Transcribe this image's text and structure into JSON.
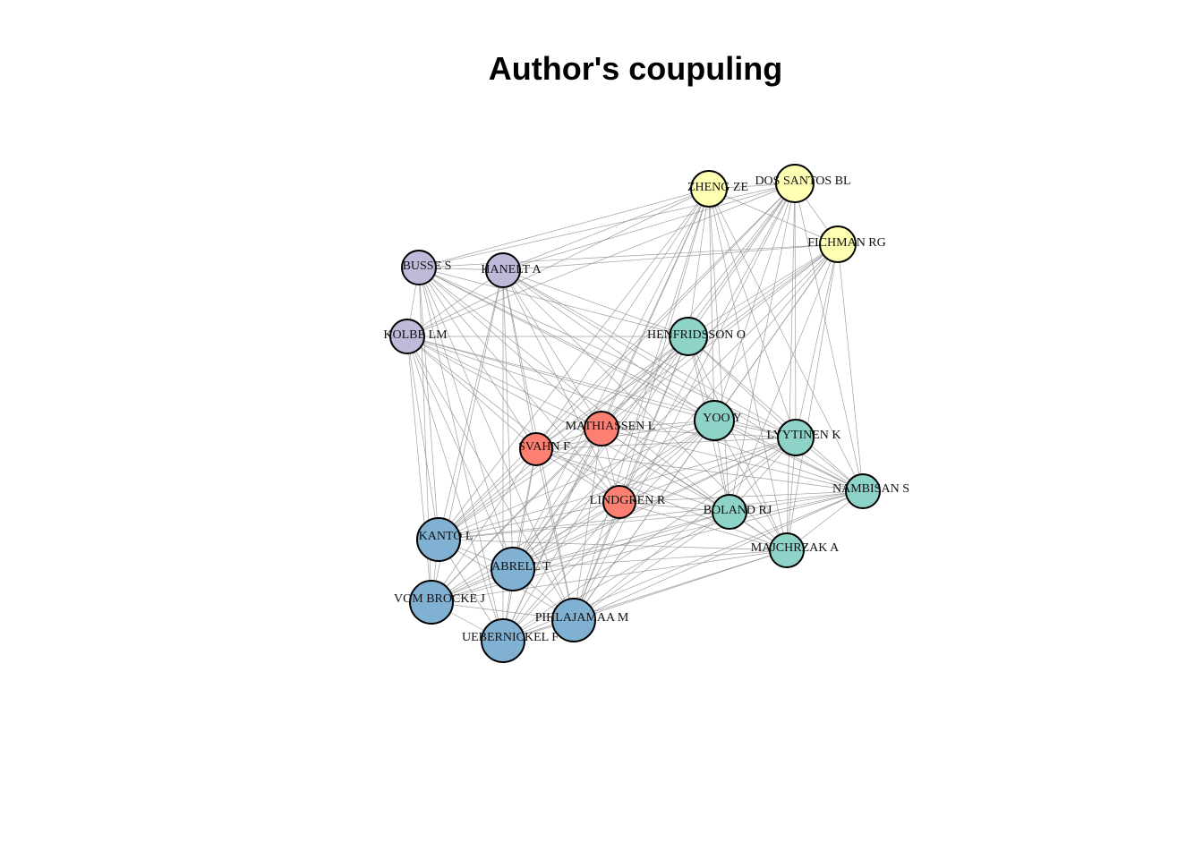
{
  "title": "Author's coupuling",
  "clusters": {
    "yellow": "#ffffb3",
    "purple": "#bebada",
    "teal": "#8dd3c7",
    "red": "#fb8072",
    "blue": "#80b1d3"
  },
  "nodes": [
    {
      "id": "zheng",
      "label": "ZHENG ZE",
      "cluster": "yellow"
    },
    {
      "id": "dossantos",
      "label": "DOS SANTOS BL",
      "cluster": "yellow"
    },
    {
      "id": "fichman",
      "label": "FICHMAN RG",
      "cluster": "yellow"
    },
    {
      "id": "busse",
      "label": "BUSSE S",
      "cluster": "purple"
    },
    {
      "id": "hanelt",
      "label": "HANELT A",
      "cluster": "purple"
    },
    {
      "id": "kolbe",
      "label": "KOLBE LM",
      "cluster": "purple"
    },
    {
      "id": "henfridsson",
      "label": "HENFRIDSSON O",
      "cluster": "teal"
    },
    {
      "id": "yoo",
      "label": "YOO Y",
      "cluster": "teal"
    },
    {
      "id": "lyytinen",
      "label": "LYYTINEN K",
      "cluster": "teal"
    },
    {
      "id": "nambisan",
      "label": "NAMBISAN S",
      "cluster": "teal"
    },
    {
      "id": "boland",
      "label": "BOLAND RJ",
      "cluster": "teal"
    },
    {
      "id": "majchrzak",
      "label": "MAJCHRZAK A",
      "cluster": "teal"
    },
    {
      "id": "mathiassen",
      "label": "MATHIASSEN L",
      "cluster": "red"
    },
    {
      "id": "svahn",
      "label": "SVAHN F",
      "cluster": "red"
    },
    {
      "id": "lindgren",
      "label": "LINDGREN R",
      "cluster": "red"
    },
    {
      "id": "kanto",
      "label": "KANTO L",
      "cluster": "blue"
    },
    {
      "id": "abrell",
      "label": "ABRELL T",
      "cluster": "blue"
    },
    {
      "id": "vombrocke",
      "label": "VOM BROCKE J",
      "cluster": "blue"
    },
    {
      "id": "pihlajamaa",
      "label": "PIHLAJAMAA M",
      "cluster": "blue"
    },
    {
      "id": "uebernickel",
      "label": "UEBERNICKEL F",
      "cluster": "blue"
    }
  ],
  "edges": [
    [
      "zheng",
      "dossantos"
    ],
    [
      "zheng",
      "fichman"
    ],
    [
      "zheng",
      "busse"
    ],
    [
      "zheng",
      "hanelt"
    ],
    [
      "zheng",
      "kolbe"
    ],
    [
      "zheng",
      "henfridsson"
    ],
    [
      "zheng",
      "yoo"
    ],
    [
      "zheng",
      "lyytinen"
    ],
    [
      "zheng",
      "boland"
    ],
    [
      "zheng",
      "majchrzak"
    ],
    [
      "zheng",
      "mathiassen"
    ],
    [
      "zheng",
      "svahn"
    ],
    [
      "zheng",
      "lindgren"
    ],
    [
      "zheng",
      "kanto"
    ],
    [
      "zheng",
      "abrell"
    ],
    [
      "zheng",
      "pihlajamaa"
    ],
    [
      "zheng",
      "uebernickel"
    ],
    [
      "zheng",
      "nambisan"
    ],
    [
      "dossantos",
      "fichman"
    ],
    [
      "dossantos",
      "busse"
    ],
    [
      "dossantos",
      "hanelt"
    ],
    [
      "dossantos",
      "henfridsson"
    ],
    [
      "dossantos",
      "yoo"
    ],
    [
      "dossantos",
      "lyytinen"
    ],
    [
      "dossantos",
      "boland"
    ],
    [
      "dossantos",
      "majchrzak"
    ],
    [
      "dossantos",
      "mathiassen"
    ],
    [
      "dossantos",
      "svahn"
    ],
    [
      "dossantos",
      "lindgren"
    ],
    [
      "dossantos",
      "kanto"
    ],
    [
      "dossantos",
      "abrell"
    ],
    [
      "dossantos",
      "pihlajamaa"
    ],
    [
      "dossantos",
      "nambisan"
    ],
    [
      "dossantos",
      "kolbe"
    ],
    [
      "fichman",
      "busse"
    ],
    [
      "fichman",
      "hanelt"
    ],
    [
      "fichman",
      "henfridsson"
    ],
    [
      "fichman",
      "yoo"
    ],
    [
      "fichman",
      "lyytinen"
    ],
    [
      "fichman",
      "nambisan"
    ],
    [
      "fichman",
      "boland"
    ],
    [
      "fichman",
      "majchrzak"
    ],
    [
      "fichman",
      "mathiassen"
    ],
    [
      "fichman",
      "lindgren"
    ],
    [
      "fichman",
      "abrell"
    ],
    [
      "fichman",
      "pihlajamaa"
    ],
    [
      "fichman",
      "kanto"
    ],
    [
      "fichman",
      "svahn"
    ],
    [
      "busse",
      "hanelt"
    ],
    [
      "busse",
      "kolbe"
    ],
    [
      "busse",
      "henfridsson"
    ],
    [
      "busse",
      "yoo"
    ],
    [
      "busse",
      "lyytinen"
    ],
    [
      "busse",
      "kanto"
    ],
    [
      "busse",
      "abrell"
    ],
    [
      "busse",
      "vombrocke"
    ],
    [
      "busse",
      "uebernickel"
    ],
    [
      "busse",
      "pihlajamaa"
    ],
    [
      "busse",
      "mathiassen"
    ],
    [
      "busse",
      "svahn"
    ],
    [
      "busse",
      "lindgren"
    ],
    [
      "busse",
      "boland"
    ],
    [
      "busse",
      "nambisan"
    ],
    [
      "hanelt",
      "kolbe"
    ],
    [
      "hanelt",
      "henfridsson"
    ],
    [
      "hanelt",
      "yoo"
    ],
    [
      "hanelt",
      "lyytinen"
    ],
    [
      "hanelt",
      "kanto"
    ],
    [
      "hanelt",
      "abrell"
    ],
    [
      "hanelt",
      "vombrocke"
    ],
    [
      "hanelt",
      "uebernickel"
    ],
    [
      "hanelt",
      "pihlajamaa"
    ],
    [
      "hanelt",
      "mathiassen"
    ],
    [
      "hanelt",
      "svahn"
    ],
    [
      "hanelt",
      "lindgren"
    ],
    [
      "hanelt",
      "nambisan"
    ],
    [
      "hanelt",
      "majchrzak"
    ],
    [
      "kolbe",
      "henfridsson"
    ],
    [
      "kolbe",
      "yoo"
    ],
    [
      "kolbe",
      "lyytinen"
    ],
    [
      "kolbe",
      "kanto"
    ],
    [
      "kolbe",
      "abrell"
    ],
    [
      "kolbe",
      "vombrocke"
    ],
    [
      "kolbe",
      "uebernickel"
    ],
    [
      "kolbe",
      "pihlajamaa"
    ],
    [
      "kolbe",
      "svahn"
    ],
    [
      "kolbe",
      "lindgren"
    ],
    [
      "kolbe",
      "nambisan"
    ],
    [
      "kolbe",
      "boland"
    ],
    [
      "kolbe",
      "mathiassen"
    ],
    [
      "henfridsson",
      "yoo"
    ],
    [
      "henfridsson",
      "lyytinen"
    ],
    [
      "henfridsson",
      "nambisan"
    ],
    [
      "henfridsson",
      "boland"
    ],
    [
      "henfridsson",
      "majchrzak"
    ],
    [
      "henfridsson",
      "mathiassen"
    ],
    [
      "henfridsson",
      "svahn"
    ],
    [
      "henfridsson",
      "lindgren"
    ],
    [
      "henfridsson",
      "kanto"
    ],
    [
      "henfridsson",
      "abrell"
    ],
    [
      "henfridsson",
      "vombrocke"
    ],
    [
      "henfridsson",
      "pihlajamaa"
    ],
    [
      "henfridsson",
      "uebernickel"
    ],
    [
      "yoo",
      "lyytinen"
    ],
    [
      "yoo",
      "nambisan"
    ],
    [
      "yoo",
      "boland"
    ],
    [
      "yoo",
      "majchrzak"
    ],
    [
      "yoo",
      "mathiassen"
    ],
    [
      "yoo",
      "svahn"
    ],
    [
      "yoo",
      "lindgren"
    ],
    [
      "yoo",
      "kanto"
    ],
    [
      "yoo",
      "abrell"
    ],
    [
      "yoo",
      "vombrocke"
    ],
    [
      "yoo",
      "pihlajamaa"
    ],
    [
      "yoo",
      "uebernickel"
    ],
    [
      "lyytinen",
      "nambisan"
    ],
    [
      "lyytinen",
      "boland"
    ],
    [
      "lyytinen",
      "majchrzak"
    ],
    [
      "lyytinen",
      "mathiassen"
    ],
    [
      "lyytinen",
      "svahn"
    ],
    [
      "lyytinen",
      "lindgren"
    ],
    [
      "lyytinen",
      "kanto"
    ],
    [
      "lyytinen",
      "abrell"
    ],
    [
      "lyytinen",
      "vombrocke"
    ],
    [
      "lyytinen",
      "pihlajamaa"
    ],
    [
      "lyytinen",
      "uebernickel"
    ],
    [
      "nambisan",
      "boland"
    ],
    [
      "nambisan",
      "majchrzak"
    ],
    [
      "nambisan",
      "mathiassen"
    ],
    [
      "nambisan",
      "svahn"
    ],
    [
      "nambisan",
      "lindgren"
    ],
    [
      "nambisan",
      "kanto"
    ],
    [
      "nambisan",
      "abrell"
    ],
    [
      "nambisan",
      "pihlajamaa"
    ],
    [
      "nambisan",
      "vombrocke"
    ],
    [
      "nambisan",
      "uebernickel"
    ],
    [
      "boland",
      "majchrzak"
    ],
    [
      "boland",
      "mathiassen"
    ],
    [
      "boland",
      "svahn"
    ],
    [
      "boland",
      "lindgren"
    ],
    [
      "boland",
      "kanto"
    ],
    [
      "boland",
      "abrell"
    ],
    [
      "boland",
      "vombrocke"
    ],
    [
      "boland",
      "pihlajamaa"
    ],
    [
      "boland",
      "uebernickel"
    ],
    [
      "majchrzak",
      "mathiassen"
    ],
    [
      "majchrzak",
      "svahn"
    ],
    [
      "majchrzak",
      "lindgren"
    ],
    [
      "majchrzak",
      "kanto"
    ],
    [
      "majchrzak",
      "abrell"
    ],
    [
      "majchrzak",
      "vombrocke"
    ],
    [
      "majchrzak",
      "pihlajamaa"
    ],
    [
      "majchrzak",
      "uebernickel"
    ],
    [
      "mathiassen",
      "svahn"
    ],
    [
      "mathiassen",
      "lindgren"
    ],
    [
      "mathiassen",
      "kanto"
    ],
    [
      "mathiassen",
      "abrell"
    ],
    [
      "mathiassen",
      "vombrocke"
    ],
    [
      "mathiassen",
      "pihlajamaa"
    ],
    [
      "mathiassen",
      "uebernickel"
    ],
    [
      "svahn",
      "lindgren"
    ],
    [
      "svahn",
      "kanto"
    ],
    [
      "svahn",
      "abrell"
    ],
    [
      "svahn",
      "vombrocke"
    ],
    [
      "svahn",
      "pihlajamaa"
    ],
    [
      "svahn",
      "uebernickel"
    ],
    [
      "lindgren",
      "kanto"
    ],
    [
      "lindgren",
      "abrell"
    ],
    [
      "lindgren",
      "vombrocke"
    ],
    [
      "lindgren",
      "pihlajamaa"
    ],
    [
      "lindgren",
      "uebernickel"
    ],
    [
      "kanto",
      "abrell"
    ],
    [
      "kanto",
      "vombrocke"
    ],
    [
      "kanto",
      "pihlajamaa"
    ],
    [
      "kanto",
      "uebernickel"
    ],
    [
      "abrell",
      "vombrocke"
    ],
    [
      "abrell",
      "pihlajamaa"
    ],
    [
      "abrell",
      "uebernickel"
    ],
    [
      "vombrocke",
      "pihlajamaa"
    ],
    [
      "vombrocke",
      "uebernickel"
    ],
    [
      "pihlajamaa",
      "uebernickel"
    ]
  ]
}
